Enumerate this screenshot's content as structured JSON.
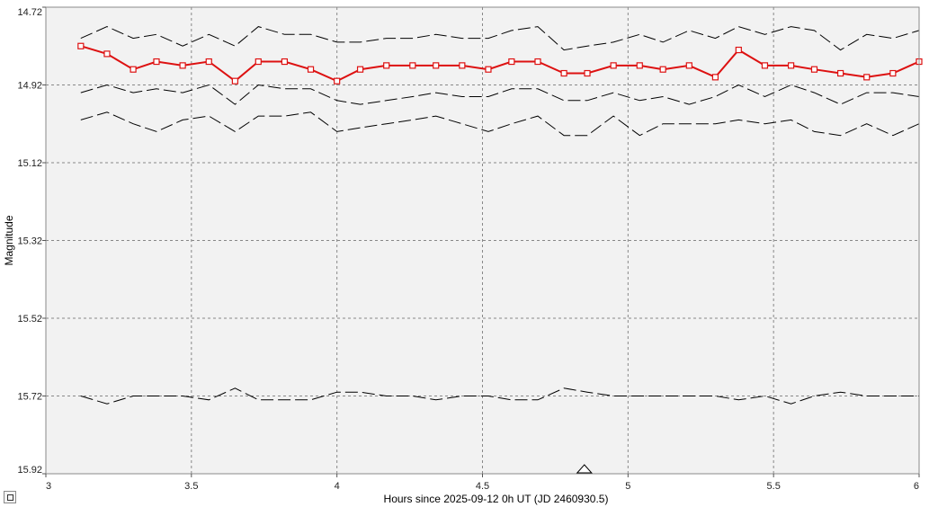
{
  "chart_data": {
    "type": "line",
    "xlabel": "Hours since 2025-09-12 0h UT (JD 2460930.5)",
    "ylabel": "Magnitude",
    "xlim": [
      3,
      6
    ],
    "ylim": [
      14.72,
      15.92
    ],
    "y_inverted": true,
    "grid": true,
    "x_ticks": [
      "3",
      "3.5",
      "4",
      "4.5",
      "5",
      "5.5",
      "6"
    ],
    "y_ticks": [
      "14.72",
      "14.92",
      "15.12",
      "15.32",
      "15.52",
      "15.72",
      "15.92"
    ],
    "marker": {
      "x": 4.85,
      "shape": "triangle"
    },
    "colors": {
      "target": "#dd1111",
      "comparison": "#000000",
      "plot_bg": "#f2f2f2",
      "grid": "#888888"
    },
    "series": [
      {
        "role": "upper-band",
        "style": "dashed",
        "x": [
          3.12,
          3.21,
          3.3,
          3.38,
          3.47,
          3.56,
          3.65,
          3.73,
          3.82,
          3.91,
          4.0,
          4.08,
          4.17,
          4.26,
          4.34,
          4.43,
          4.52,
          4.6,
          4.69,
          4.78,
          4.86,
          4.95,
          5.04,
          5.12,
          5.21,
          5.3,
          5.38,
          5.47,
          5.56,
          5.64,
          5.73,
          5.82,
          5.91,
          6.0
        ],
        "values": [
          14.8,
          14.77,
          14.8,
          14.79,
          14.82,
          14.79,
          14.82,
          14.77,
          14.79,
          14.79,
          14.81,
          14.81,
          14.8,
          14.8,
          14.79,
          14.8,
          14.8,
          14.78,
          14.77,
          14.83,
          14.82,
          14.81,
          14.79,
          14.81,
          14.78,
          14.8,
          14.77,
          14.79,
          14.77,
          14.78,
          14.83,
          14.79,
          14.8,
          14.78
        ]
      },
      {
        "role": "target",
        "style": "solid-markers",
        "x": [
          3.12,
          3.21,
          3.3,
          3.38,
          3.47,
          3.56,
          3.65,
          3.73,
          3.82,
          3.91,
          4.0,
          4.08,
          4.17,
          4.26,
          4.34,
          4.43,
          4.52,
          4.6,
          4.69,
          4.78,
          4.86,
          4.95,
          5.04,
          5.12,
          5.21,
          5.3,
          5.38,
          5.47,
          5.56,
          5.64,
          5.73,
          5.82,
          5.91,
          6.0
        ],
        "values": [
          14.82,
          14.84,
          14.88,
          14.86,
          14.87,
          14.86,
          14.91,
          14.86,
          14.86,
          14.88,
          14.91,
          14.88,
          14.87,
          14.87,
          14.87,
          14.87,
          14.88,
          14.86,
          14.86,
          14.89,
          14.89,
          14.87,
          14.87,
          14.88,
          14.87,
          14.9,
          14.83,
          14.87,
          14.87,
          14.88,
          14.89,
          14.9,
          14.89,
          14.86
        ]
      },
      {
        "role": "lower-band",
        "style": "dashed",
        "x": [
          3.12,
          3.21,
          3.3,
          3.38,
          3.47,
          3.56,
          3.65,
          3.73,
          3.82,
          3.91,
          4.0,
          4.08,
          4.17,
          4.26,
          4.34,
          4.43,
          4.52,
          4.6,
          4.69,
          4.78,
          4.86,
          4.95,
          5.04,
          5.12,
          5.21,
          5.3,
          5.38,
          5.47,
          5.56,
          5.64,
          5.73,
          5.82,
          5.91,
          6.0
        ],
        "values": [
          14.94,
          14.92,
          14.94,
          14.93,
          14.94,
          14.92,
          14.97,
          14.92,
          14.93,
          14.93,
          14.96,
          14.97,
          14.96,
          14.95,
          14.94,
          14.95,
          14.95,
          14.93,
          14.93,
          14.96,
          14.96,
          14.94,
          14.96,
          14.95,
          14.97,
          14.95,
          14.92,
          14.95,
          14.92,
          14.94,
          14.97,
          14.94,
          14.94,
          14.95
        ]
      },
      {
        "role": "lower-band-2",
        "style": "dashed",
        "x": [
          3.12,
          3.21,
          3.3,
          3.38,
          3.47,
          3.56,
          3.65,
          3.73,
          3.82,
          3.91,
          4.0,
          4.08,
          4.17,
          4.26,
          4.34,
          4.43,
          4.52,
          4.6,
          4.69,
          4.78,
          4.86,
          4.95,
          5.04,
          5.12,
          5.21,
          5.3,
          5.38,
          5.47,
          5.56,
          5.64,
          5.73,
          5.82,
          5.91,
          6.0
        ],
        "values": [
          15.01,
          14.99,
          15.02,
          15.04,
          15.01,
          15.0,
          15.04,
          15.0,
          15.0,
          14.99,
          15.04,
          15.03,
          15.02,
          15.01,
          15.0,
          15.02,
          15.04,
          15.02,
          15.0,
          15.05,
          15.05,
          15.0,
          15.05,
          15.02,
          15.02,
          15.02,
          15.01,
          15.02,
          15.01,
          15.04,
          15.05,
          15.02,
          15.05,
          15.02
        ]
      },
      {
        "role": "comparison-star",
        "style": "dashed",
        "x": [
          3.12,
          3.21,
          3.3,
          3.38,
          3.47,
          3.56,
          3.65,
          3.73,
          3.82,
          3.91,
          4.0,
          4.08,
          4.17,
          4.26,
          4.34,
          4.43,
          4.52,
          4.6,
          4.69,
          4.78,
          4.86,
          4.95,
          5.04,
          5.12,
          5.21,
          5.3,
          5.38,
          5.47,
          5.56,
          5.64,
          5.73,
          5.82,
          5.91,
          6.0
        ],
        "values": [
          15.72,
          15.74,
          15.72,
          15.72,
          15.72,
          15.73,
          15.7,
          15.73,
          15.73,
          15.73,
          15.71,
          15.71,
          15.72,
          15.72,
          15.73,
          15.72,
          15.72,
          15.73,
          15.73,
          15.7,
          15.71,
          15.72,
          15.72,
          15.72,
          15.72,
          15.72,
          15.73,
          15.72,
          15.74,
          15.72,
          15.71,
          15.72,
          15.72,
          15.72
        ]
      }
    ]
  }
}
